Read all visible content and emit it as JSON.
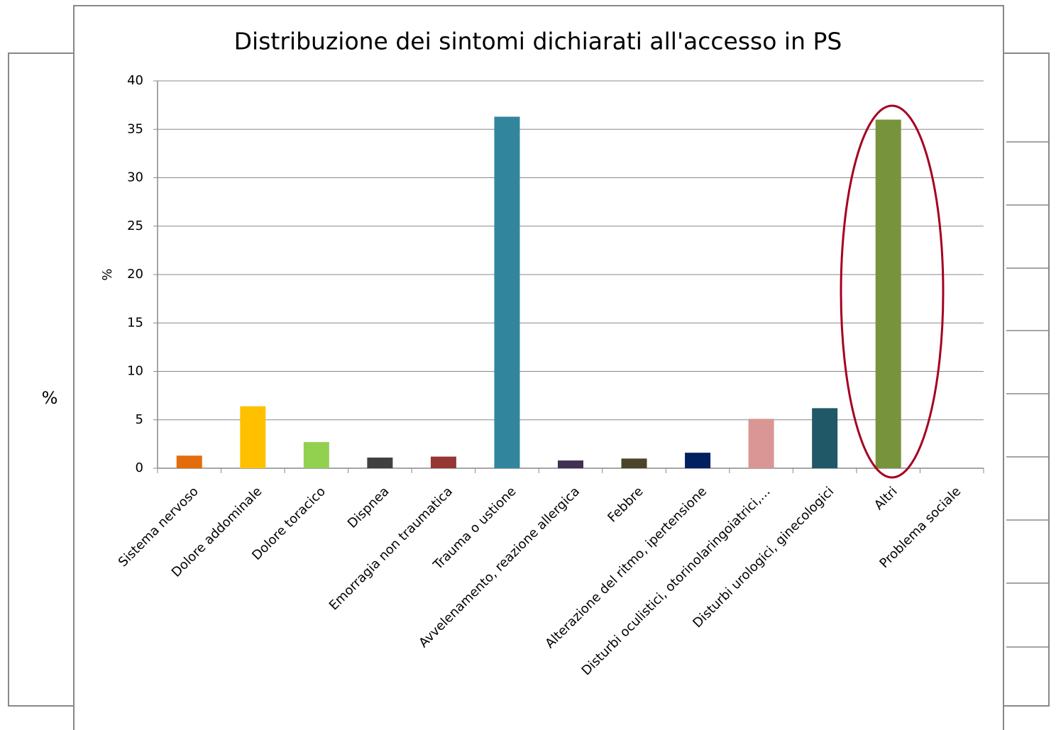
{
  "chart_data": {
    "type": "bar",
    "title": "Distribuzione dei sintomi dichiarati all'accesso in PS",
    "y_label": "%",
    "categories": [
      "Sistema nervoso",
      "Dolore addominale",
      "Dolore toracico",
      "Dispnea",
      "Emorragia non traumatica",
      "Trauma o ustione",
      "Avvelenamento, reazione allergica",
      "Febbre",
      "Alterazione del ritmo, ipertensione",
      "Disturbi oculistici, otorinolaringoiatrici,…",
      "Disturbi urologici, ginecologici",
      "Altri",
      "Problema sociale"
    ],
    "values": [
      1.3,
      6.4,
      2.7,
      1.1,
      1.2,
      36.3,
      0.8,
      1.0,
      1.6,
      5.1,
      6.2,
      36.0,
      0
    ],
    "colors": [
      "#e46c0a",
      "#ffc000",
      "#92d050",
      "#404040",
      "#953735",
      "#31859c",
      "#403152",
      "#4a452a",
      "#002060",
      "#d99694",
      "#215868",
      "#77933c",
      "#4bacc6"
    ],
    "ylim": [
      0,
      40
    ],
    "yticks": [
      0,
      5,
      10,
      15,
      20,
      25,
      30,
      35,
      40
    ],
    "grid": true
  },
  "background": {
    "y_label": "%"
  }
}
